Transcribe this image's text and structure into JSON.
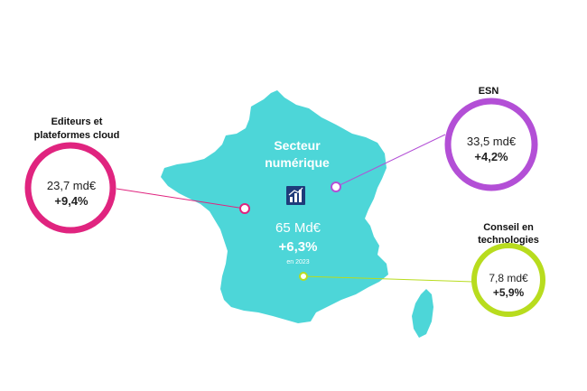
{
  "colors": {
    "map_fill": "#4dd6d8",
    "editeurs": "#e0247f",
    "esn": "#b34fd6",
    "conseil": "#b8dc1e",
    "icon_bg": "#1e3b7a"
  },
  "center": {
    "title_line1": "Secteur",
    "title_line2": "numérique",
    "icon": "bar-chart-growth-icon",
    "total_value": "65 Md€",
    "total_growth": "+6,3%",
    "period": "en 2023"
  },
  "segments": {
    "editeurs": {
      "label_line1": "Editeurs et",
      "label_line2": "plateformes cloud",
      "value": "23,7 md€",
      "growth": "+9,4%"
    },
    "esn": {
      "label": "ESN",
      "value": "33,5 md€",
      "growth": "+4,2%"
    },
    "conseil": {
      "label_line1": "Conseil en",
      "label_line2": "technologies",
      "value": "7,8 md€",
      "growth": "+5,9%"
    }
  }
}
